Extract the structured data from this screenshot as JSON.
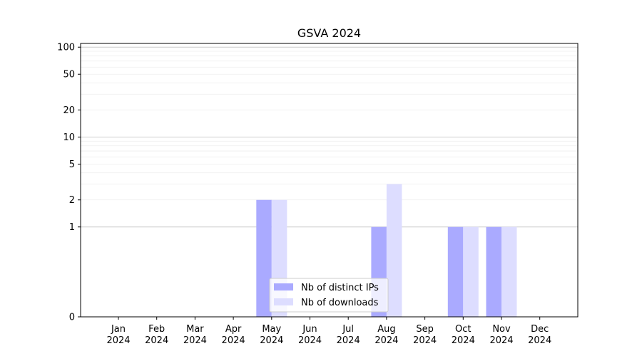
{
  "chart_data": {
    "type": "bar",
    "title": "GSVA 2024",
    "xlabel": "",
    "ylabel": "",
    "categories": [
      [
        "Jan",
        "2024"
      ],
      [
        "Feb",
        "2024"
      ],
      [
        "Mar",
        "2024"
      ],
      [
        "Apr",
        "2024"
      ],
      [
        "May",
        "2024"
      ],
      [
        "Jun",
        "2024"
      ],
      [
        "Jul",
        "2024"
      ],
      [
        "Aug",
        "2024"
      ],
      [
        "Sep",
        "2024"
      ],
      [
        "Oct",
        "2024"
      ],
      [
        "Nov",
        "2024"
      ],
      [
        "Dec",
        "2024"
      ]
    ],
    "series": [
      {
        "name": "Nb of distinct IPs",
        "color": "#aaaaff",
        "values": [
          0,
          0,
          0,
          0,
          2,
          0,
          0,
          1,
          0,
          1,
          1,
          0
        ]
      },
      {
        "name": "Nb of downloads",
        "color": "#ddddff",
        "values": [
          0,
          0,
          0,
          0,
          2,
          0,
          0,
          3,
          0,
          1,
          1,
          0
        ]
      }
    ],
    "y_scale": "symlog",
    "yticks": [
      0,
      1,
      2,
      5,
      10,
      20,
      50,
      100
    ],
    "ylim": [
      0,
      110
    ],
    "grid": true,
    "legend": "lower-center"
  }
}
